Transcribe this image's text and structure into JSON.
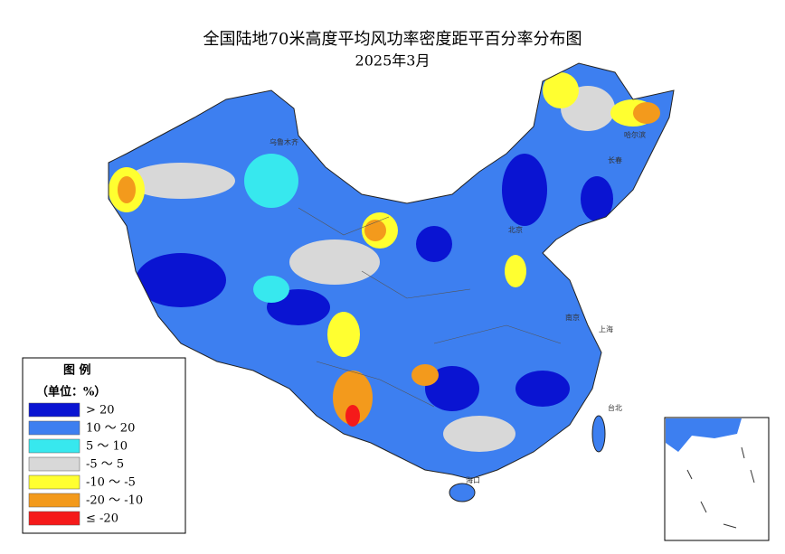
{
  "header": {
    "title": "全国陆地70米高度平均风功率密度距平百分率分布图",
    "subtitle": "2025年3月"
  },
  "legend": {
    "title": "图 例",
    "unit": "（单位：%）",
    "items": [
      {
        "label": "> 20",
        "color": "#0a14d2"
      },
      {
        "label": "10 ～ 20",
        "color": "#3d7ff0"
      },
      {
        "label": "5 ～ 10",
        "color": "#37e8ee"
      },
      {
        "label": "-5 ～ 5",
        "color": "#d8d8d8"
      },
      {
        "label": "-10 ～ -5",
        "color": "#ffff30"
      },
      {
        "label": "-20 ～ -10",
        "color": "#f39a1c"
      },
      {
        "label": "≤ -20",
        "color": "#f51a1a"
      }
    ]
  },
  "cities": [
    {
      "label": "乌鲁木齐"
    },
    {
      "label": "哈尔滨"
    },
    {
      "label": "长春"
    },
    {
      "label": "北京"
    },
    {
      "label": "上海"
    },
    {
      "label": "南京"
    },
    {
      "label": "台北"
    },
    {
      "label": "海口"
    }
  ]
}
